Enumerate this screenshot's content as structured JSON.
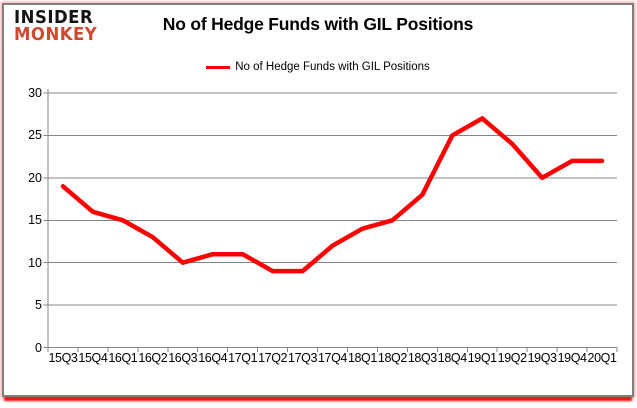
{
  "brand": {
    "line1": "INSIDER",
    "line2": "MONKEY"
  },
  "header": {
    "title": "No of Hedge Funds with GIL Positions"
  },
  "legend": {
    "label": "No of Hedge Funds with GIL Positions"
  },
  "colors": {
    "line": "#ff0000",
    "grid": "#848484",
    "axis": "#848484",
    "text": "#000000",
    "frame_border": "#7f7f7f",
    "frame_glow": "#ff0000",
    "logo_black": "#141414",
    "logo_red": "#cb4a31",
    "background": "#ffffff"
  },
  "chart_data": {
    "type": "line",
    "title": "No of Hedge Funds with GIL Positions",
    "categories": [
      "15Q3",
      "15Q4",
      "16Q1",
      "16Q2",
      "16Q3",
      "16Q4",
      "17Q1",
      "17Q2",
      "17Q3",
      "17Q4",
      "18Q1",
      "18Q2",
      "18Q3",
      "18Q4",
      "19Q1",
      "19Q2",
      "19Q3",
      "19Q4",
      "20Q1"
    ],
    "series": [
      {
        "name": "No of Hedge Funds with GIL Positions",
        "color": "#ff0000",
        "values": [
          19,
          16,
          15,
          13,
          10,
          11,
          11,
          9,
          9,
          12,
          14,
          15,
          18,
          25,
          27,
          24,
          20,
          22,
          22
        ]
      }
    ],
    "xlabel": "",
    "ylabel": "",
    "ylim": [
      0,
      30
    ],
    "yticks": [
      0,
      5,
      10,
      15,
      20,
      25,
      30
    ],
    "grid": true,
    "legend_position": "top-center"
  }
}
